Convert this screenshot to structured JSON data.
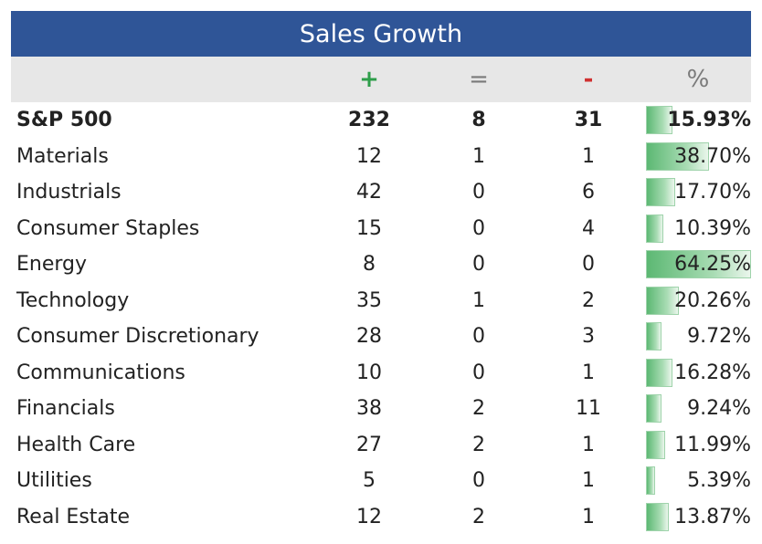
{
  "chart_data": {
    "type": "table",
    "title": "Sales Growth",
    "columns": [
      "",
      "+",
      "=",
      "-",
      "%"
    ],
    "header_colors": {
      "plus": "#2e9e4a",
      "equal": "#7a7a7a",
      "minus": "#d03030",
      "pct": "#7a7a7a"
    },
    "bar_color": "#5cb873",
    "pct_max": 64.25,
    "rows": [
      {
        "name": "S&P 500",
        "plus": "232",
        "equal": "8",
        "minus": "31",
        "pct": 15.93,
        "pct_label": "15.93%",
        "bold": true
      },
      {
        "name": "Materials",
        "plus": "12",
        "equal": "1",
        "minus": "1",
        "pct": 38.7,
        "pct_label": "38.70%"
      },
      {
        "name": "Industrials",
        "plus": "42",
        "equal": "0",
        "minus": "6",
        "pct": 17.7,
        "pct_label": "17.70%"
      },
      {
        "name": "Consumer Staples",
        "plus": "15",
        "equal": "0",
        "minus": "4",
        "pct": 10.39,
        "pct_label": "10.39%"
      },
      {
        "name": "Energy",
        "plus": "8",
        "equal": "0",
        "minus": "0",
        "pct": 64.25,
        "pct_label": "64.25%"
      },
      {
        "name": "Technology",
        "plus": "35",
        "equal": "1",
        "minus": "2",
        "pct": 20.26,
        "pct_label": "20.26%"
      },
      {
        "name": "Consumer Discretionary",
        "plus": "28",
        "equal": "0",
        "minus": "3",
        "pct": 9.72,
        "pct_label": "9.72%"
      },
      {
        "name": "Communications",
        "plus": "10",
        "equal": "0",
        "minus": "1",
        "pct": 16.28,
        "pct_label": "16.28%"
      },
      {
        "name": "Financials",
        "plus": "38",
        "equal": "2",
        "minus": "11",
        "pct": 9.24,
        "pct_label": "9.24%"
      },
      {
        "name": "Health Care",
        "plus": "27",
        "equal": "2",
        "minus": "1",
        "pct": 11.99,
        "pct_label": "11.99%"
      },
      {
        "name": "Utilities",
        "plus": "5",
        "equal": "0",
        "minus": "1",
        "pct": 5.39,
        "pct_label": "5.39%"
      },
      {
        "name": "Real Estate",
        "plus": "12",
        "equal": "2",
        "minus": "1",
        "pct": 13.87,
        "pct_label": "13.87%"
      }
    ]
  }
}
